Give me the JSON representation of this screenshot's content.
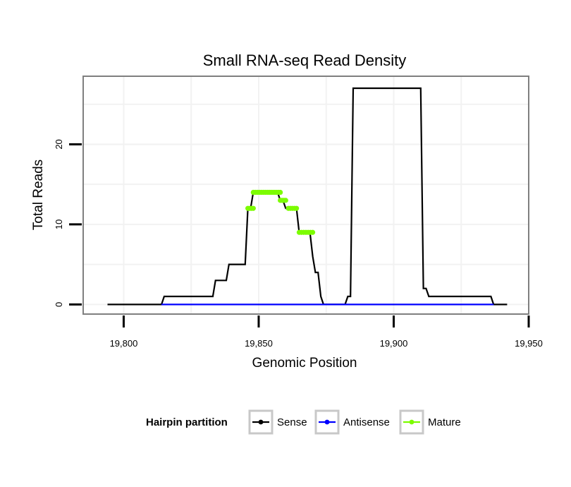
{
  "chart_data": {
    "type": "line",
    "title": "Small RNA-seq Read Density",
    "xlabel": "Genomic Position",
    "ylabel": "Total Reads",
    "xlim": [
      19785,
      19950
    ],
    "ylim": [
      -1.2,
      28.5
    ],
    "x_ticks": [
      {
        "value": 19800,
        "label": "19,800"
      },
      {
        "value": 19850,
        "label": "19,850"
      },
      {
        "value": 19900,
        "label": "19,900"
      },
      {
        "value": 19950,
        "label": "19,950"
      }
    ],
    "y_ticks": [
      {
        "value": 0,
        "label": "0"
      },
      {
        "value": 10,
        "label": "10"
      },
      {
        "value": 20,
        "label": "20"
      }
    ],
    "grid": true,
    "legend": {
      "title": "Hairpin partition",
      "position": "bottom",
      "entries": [
        {
          "name": "Sense",
          "color": "#000000"
        },
        {
          "name": "Antisense",
          "color": "#0000ff"
        },
        {
          "name": "Mature",
          "color": "#7cfc00"
        }
      ]
    },
    "series": [
      {
        "name": "Sense",
        "color": "#000000",
        "x": [
          19794,
          19814,
          19815,
          19833,
          19834,
          19838,
          19839,
          19845,
          19846,
          19847,
          19848,
          19857,
          19858,
          19859,
          19860,
          19861,
          19864,
          19865,
          19866,
          19868,
          19869,
          19870,
          19871,
          19872,
          19873,
          19874,
          19875,
          19882,
          19883,
          19884,
          19885,
          19910,
          19911,
          19912,
          19913,
          19936,
          19937,
          19942
        ],
        "y": [
          0,
          0,
          1,
          1,
          3,
          3,
          5,
          5,
          12,
          12,
          14,
          14,
          13,
          13,
          12,
          12,
          12,
          9,
          9,
          9,
          9,
          6,
          4,
          4,
          1,
          0,
          0,
          0,
          1,
          1,
          27,
          27,
          2,
          2,
          1,
          1,
          0,
          0
        ]
      },
      {
        "name": "Antisense",
        "color": "#0000ff",
        "x": [
          19814,
          19937
        ],
        "y": [
          0,
          0
        ]
      },
      {
        "name": "Mature",
        "color": "#7cfc00",
        "segments": [
          {
            "x": [
              19846,
              19848
            ],
            "y": 12
          },
          {
            "x": [
              19848,
              19858
            ],
            "y": 14
          },
          {
            "x": [
              19858,
              19860
            ],
            "y": 13
          },
          {
            "x": [
              19861,
              19864
            ],
            "y": 12
          },
          {
            "x": [
              19865,
              19870
            ],
            "y": 9
          }
        ]
      }
    ]
  }
}
